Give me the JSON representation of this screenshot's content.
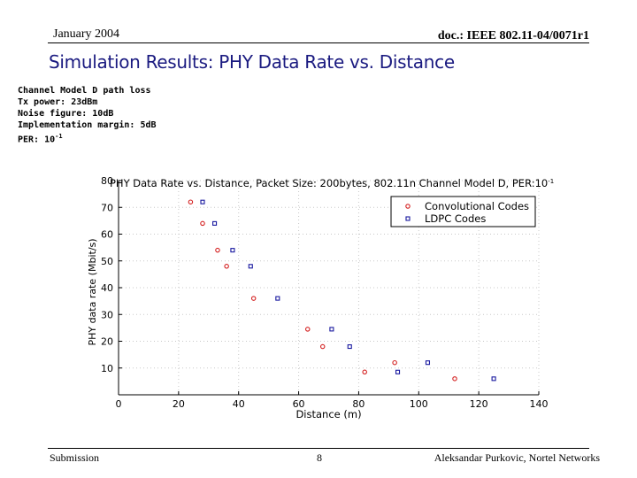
{
  "header": {
    "date": "January 2004",
    "doc_id": "doc.: IEEE 802.11-04/0071r1"
  },
  "slide": {
    "title": "Simulation Results: PHY Data Rate  vs. Distance",
    "params": [
      "Channel Model D path loss",
      "Tx power: 23dBm",
      "Noise figure: 10dB",
      "Implementation margin: 5dB"
    ],
    "per_label": "PER: 10",
    "per_exp": "-1"
  },
  "footer": {
    "left": "Submission",
    "page": "8",
    "right": "Aleksandar Purkovic, Nortel Networks"
  },
  "chart_data": {
    "type": "scatter",
    "title": "PHY Data Rate vs. Distance, Packet Size: 200bytes, 802.11n Channel Model D, PER:10",
    "title_exp": "-1",
    "xlabel": "Distance (m)",
    "ylabel": "PHY data rate (Mbit/s)",
    "xlim": [
      0,
      140
    ],
    "ylim": [
      0,
      80
    ],
    "xticks": [
      0,
      20,
      40,
      60,
      80,
      100,
      120,
      140
    ],
    "yticks": [
      10,
      20,
      30,
      40,
      50,
      60,
      70,
      80
    ],
    "legend_position": "top-right",
    "grid": true,
    "series": [
      {
        "name": "Convolutional Codes",
        "marker": "circle",
        "color": "#d42020",
        "points": [
          [
            24,
            72
          ],
          [
            28,
            64
          ],
          [
            33,
            54
          ],
          [
            36,
            48
          ],
          [
            45,
            36
          ],
          [
            63,
            24.5
          ],
          [
            68,
            18
          ],
          [
            82,
            8.5
          ],
          [
            92,
            12
          ],
          [
            112,
            6
          ]
        ]
      },
      {
        "name": "LDPC Codes",
        "marker": "square",
        "color": "#1a1aa0",
        "points": [
          [
            28,
            72
          ],
          [
            32,
            64
          ],
          [
            38,
            54
          ],
          [
            44,
            48
          ],
          [
            53,
            36
          ],
          [
            71,
            24.5
          ],
          [
            77,
            18
          ],
          [
            93,
            8.5
          ],
          [
            103,
            12
          ],
          [
            125,
            6
          ]
        ]
      }
    ]
  }
}
